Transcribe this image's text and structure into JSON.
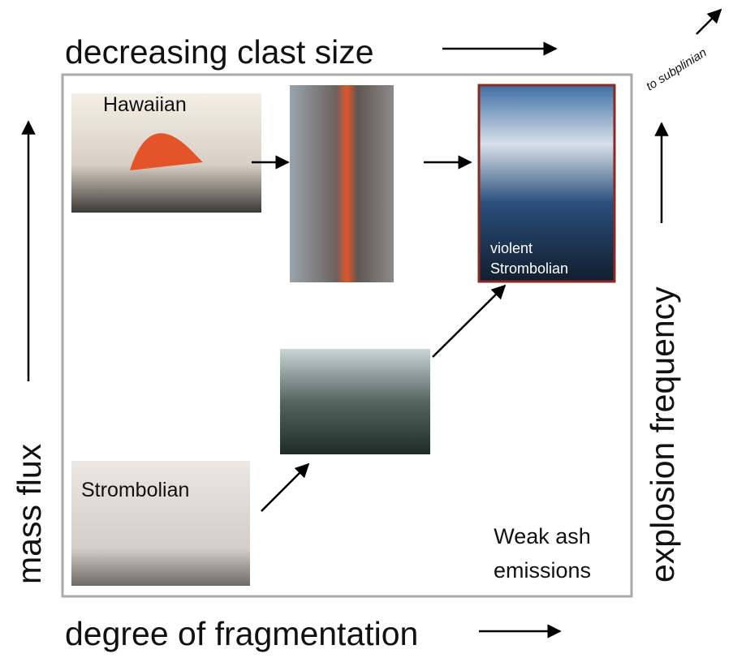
{
  "axes": {
    "top": "decreasing clast size",
    "corner": "to subplinian",
    "left": "mass flux",
    "right": "explosion frequency",
    "bottom": "degree of fragmentation"
  },
  "panels": {
    "hawaiian": "Hawaiian",
    "strombolian": "Strombolian",
    "violent": [
      "violent",
      "Strombolian"
    ],
    "weak_ash": [
      "Weak ash",
      "emissions"
    ]
  }
}
